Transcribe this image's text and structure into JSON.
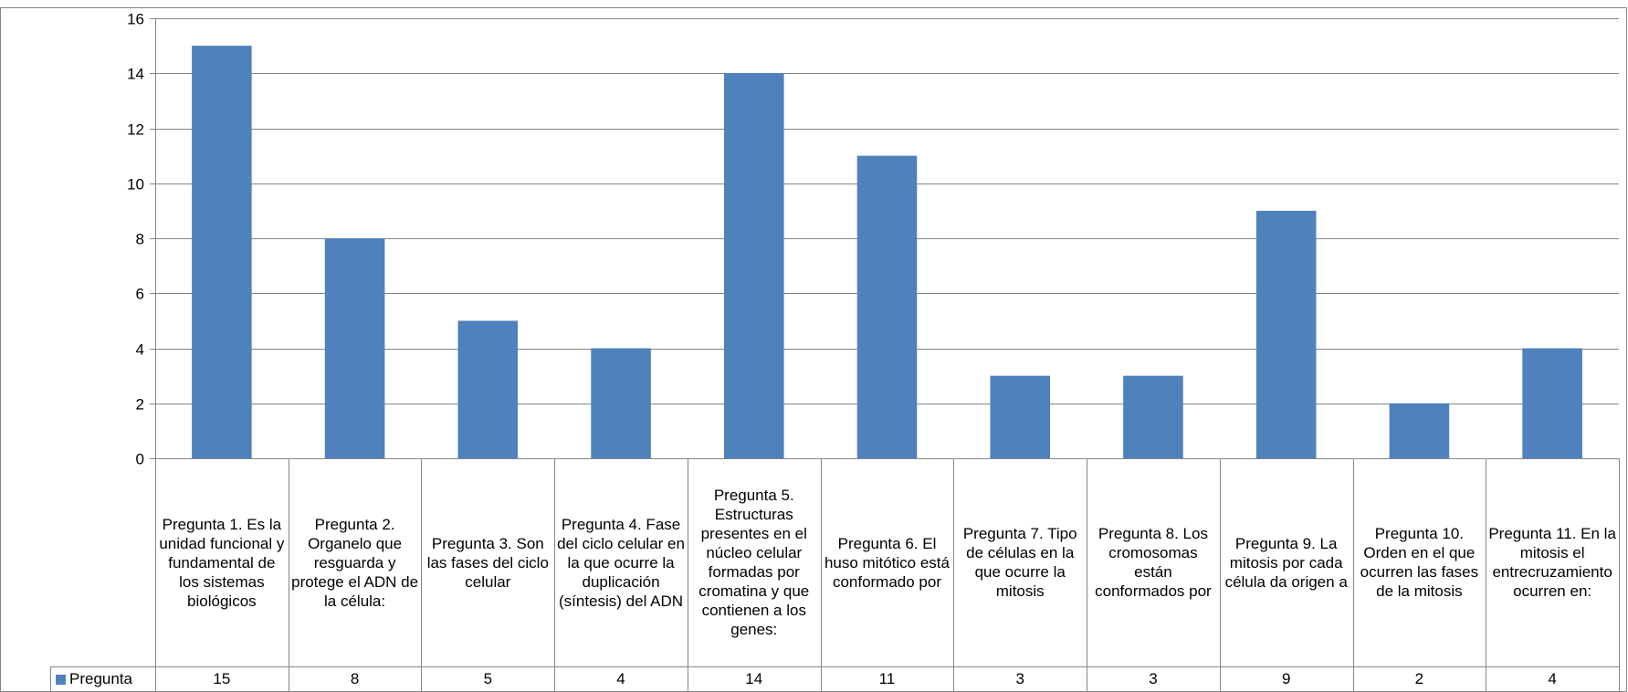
{
  "chart_data": {
    "type": "bar",
    "categories": [
      "Pregunta 1. Es la unidad funcional y fundamental de los sistemas biológicos",
      "Pregunta 2. Organelo que resguarda y protege el ADN de la célula:",
      "Pregunta 3. Son las fases del ciclo celular",
      "Pregunta 4. Fase del ciclo celular en la que ocurre la duplicación (síntesis) del ADN",
      "Pregunta 5. Estructuras presentes en el núcleo celular formadas por cromatina y que contienen a los genes:",
      "Pregunta 6. El huso mitótico está conformado por",
      "Pregunta 7. Tipo de células en la que ocurre la mitosis",
      "Pregunta 8. Los cromosomas están conformados por",
      "Pregunta 9. La mitosis por cada célula da origen a",
      "Pregunta 10. Orden en el que ocurren las fases de la mitosis",
      "Pregunta 11. En la mitosis el entrecruzamiento ocurren en:"
    ],
    "series": [
      {
        "name": "Pregunta",
        "values": [
          15,
          8,
          5,
          4,
          14,
          11,
          3,
          3,
          9,
          2,
          4
        ],
        "color": "#4f81bd"
      }
    ],
    "ylim": [
      0,
      16
    ],
    "yticks": [
      0,
      2,
      4,
      6,
      8,
      10,
      12,
      14,
      16
    ],
    "grid": true,
    "legend": "data-table-left",
    "title": "",
    "xlabel": "",
    "ylabel": ""
  }
}
